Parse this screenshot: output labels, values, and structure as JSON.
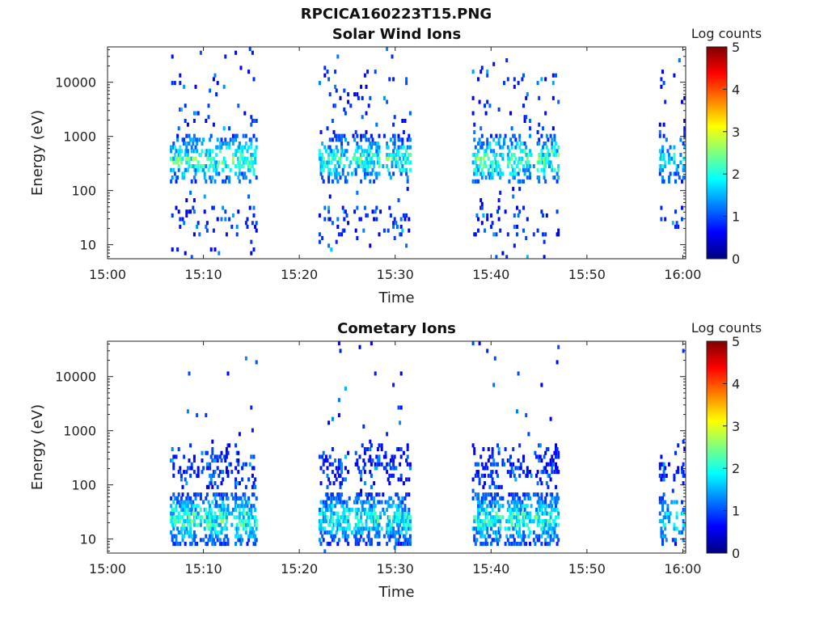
{
  "figure": {
    "filename": "RPCICA160223T15.PNG"
  },
  "colorscale": {
    "stops": [
      "#00007f",
      "#0000ff",
      "#007fff",
      "#00ffff",
      "#7fff7f",
      "#ffff00",
      "#ff7f00",
      "#ff0000",
      "#7f0000"
    ]
  },
  "chart_data": [
    {
      "type": "heatmap",
      "title": "Solar Wind Ions",
      "xlabel": "Time",
      "ylabel": "Energy (eV)",
      "yscale": "log",
      "ylim": [
        5.5,
        45000
      ],
      "xlim_minutes_after_1500": [
        0,
        60.3
      ],
      "xticks": [
        "15:00",
        "15:10",
        "15:20",
        "15:30",
        "15:40",
        "15:50",
        "16:00"
      ],
      "yticks": [
        10,
        100,
        1000,
        10000
      ],
      "yticklabels": [
        "10",
        "100",
        "1000",
        "10000"
      ],
      "colorbar": {
        "label": "Log counts",
        "min": 0,
        "max": 5,
        "ticks": [
          "0",
          "1",
          "2",
          "3",
          "4",
          "5"
        ]
      },
      "bursts": [
        {
          "t_start": "15:06.5",
          "t_end": "15:15.5",
          "energy_band_eV": [
            200,
            600
          ],
          "peak_log_counts": 2.6
        },
        {
          "t_start": "15:22.0",
          "t_end": "15:31.5",
          "energy_band_eV": [
            200,
            600
          ],
          "peak_log_counts": 2.5
        },
        {
          "t_start": "15:38.0",
          "t_end": "15:47.0",
          "energy_band_eV": [
            200,
            600
          ],
          "peak_log_counts": 2.7
        },
        {
          "t_start": "15:57.5",
          "t_end": "16:00.3",
          "energy_band_eV": [
            200,
            600
          ],
          "peak_log_counts": 2.2
        }
      ],
      "grid": false
    },
    {
      "type": "heatmap",
      "title": "Cometary Ions",
      "xlabel": "Time",
      "ylabel": "Energy (eV)",
      "yscale": "log",
      "ylim": [
        5.5,
        45000
      ],
      "xlim_minutes_after_1500": [
        0,
        60.3
      ],
      "xticks": [
        "15:00",
        "15:10",
        "15:20",
        "15:30",
        "15:40",
        "15:50",
        "16:00"
      ],
      "yticks": [
        10,
        100,
        1000,
        10000
      ],
      "yticklabels": [
        "10",
        "100",
        "1000",
        "10000"
      ],
      "colorbar": {
        "label": "Log counts",
        "min": 0,
        "max": 5,
        "ticks": [
          "0",
          "1",
          "2",
          "3",
          "4",
          "5"
        ]
      },
      "bursts": [
        {
          "t_start": "15:06.5",
          "t_end": "15:15.5",
          "energy_band_eV": [
            12,
            40
          ],
          "peak_log_counts": 2.6
        },
        {
          "t_start": "15:22.0",
          "t_end": "15:31.5",
          "energy_band_eV": [
            12,
            40
          ],
          "peak_log_counts": 2.4
        },
        {
          "t_start": "15:38.0",
          "t_end": "15:47.0",
          "energy_band_eV": [
            12,
            40
          ],
          "peak_log_counts": 2.5
        },
        {
          "t_start": "15:57.5",
          "t_end": "16:00.3",
          "energy_band_eV": [
            12,
            40
          ],
          "peak_log_counts": 2.3
        }
      ],
      "grid": false
    }
  ]
}
